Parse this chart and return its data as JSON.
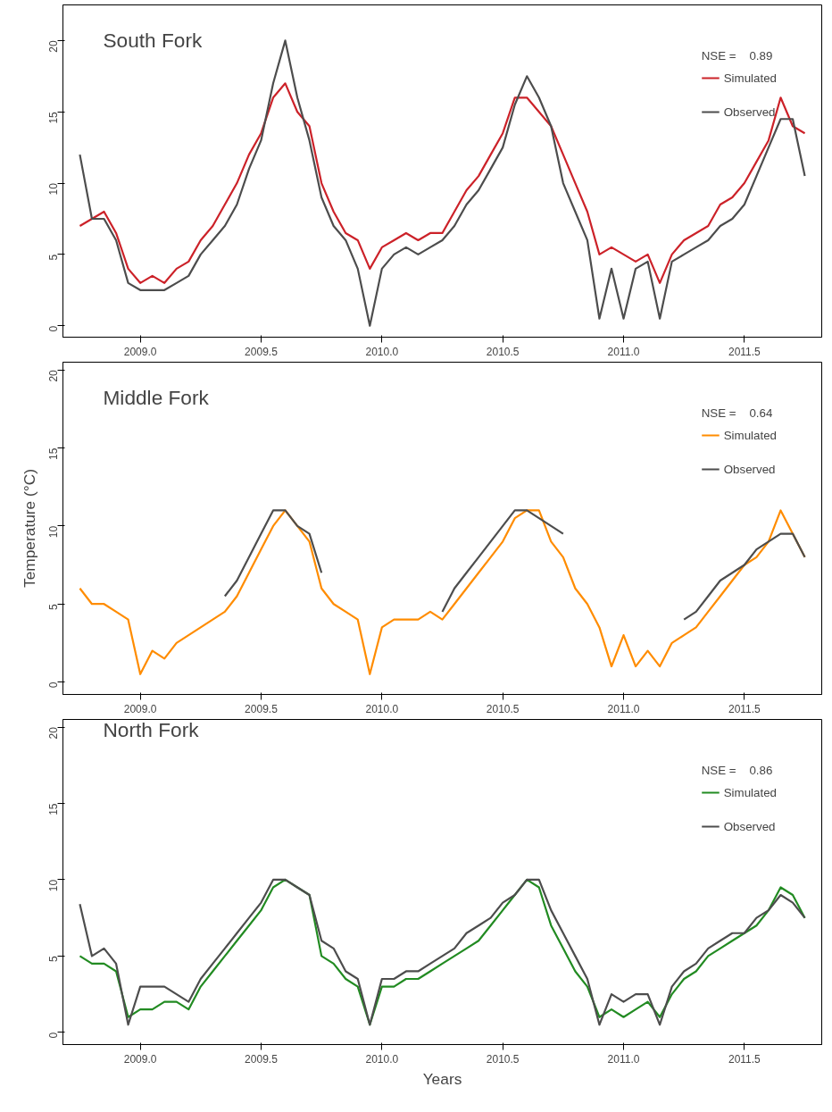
{
  "chart_data": [
    {
      "type": "line",
      "title": "South Fork",
      "legend_title": "NSE =    0.89",
      "legend": "top right",
      "x": [
        2008.75,
        2008.8,
        2008.85,
        2008.9,
        2008.95,
        2009,
        2009.05,
        2009.1,
        2009.15,
        2009.2,
        2009.25,
        2009.3,
        2009.35,
        2009.4,
        2009.45,
        2009.5,
        2009.55,
        2009.6,
        2009.65,
        2009.7,
        2009.75,
        2009.8,
        2009.85,
        2009.9,
        2009.95,
        2010,
        2010.05,
        2010.1,
        2010.15,
        2010.2,
        2010.25,
        2010.3,
        2010.35,
        2010.4,
        2010.45,
        2010.5,
        2010.55,
        2010.6,
        2010.65,
        2010.7,
        2010.75,
        2010.8,
        2010.85,
        2010.9,
        2010.95,
        2011,
        2011.05,
        2011.1,
        2011.15,
        2011.2,
        2011.25,
        2011.3,
        2011.35,
        2011.4,
        2011.45,
        2011.5,
        2011.55,
        2011.6,
        2011.65,
        2011.7,
        2011.75
      ],
      "series": [
        {
          "name": "Simulated",
          "color": "#cc2229",
          "values": [
            7,
            7.5,
            8,
            6.5,
            4,
            3,
            3.5,
            3,
            4,
            4.5,
            6,
            7,
            8.5,
            10,
            12,
            13.5,
            16,
            17,
            15,
            14,
            10,
            8,
            6.5,
            6,
            4,
            5.5,
            6,
            6.5,
            6,
            6.5,
            6.5,
            8,
            9.5,
            10.5,
            12,
            13.5,
            16,
            16,
            15,
            14,
            12,
            10,
            8,
            5,
            5.5,
            5,
            4.5,
            5,
            3,
            5,
            6,
            6.5,
            7,
            8.5,
            9,
            10,
            11.5,
            13,
            16,
            14,
            13.5
          ]
        },
        {
          "name": "Observed",
          "color": "#4d4d4d",
          "values": [
            12,
            7.5,
            7.5,
            6,
            3,
            2.5,
            2.5,
            2.5,
            3,
            3.5,
            5,
            6,
            7,
            8.5,
            11,
            13,
            17,
            20,
            16,
            13,
            9,
            7,
            6,
            4,
            0,
            4,
            5,
            5.5,
            5,
            5.5,
            6,
            7,
            8.5,
            9.5,
            11,
            12.5,
            15.5,
            17.5,
            16,
            14,
            10,
            8,
            6,
            0.5,
            4,
            0.5,
            4,
            4.5,
            0.5,
            4.5,
            5,
            5.5,
            6,
            7,
            7.5,
            8.5,
            10.5,
            12.5,
            14.5,
            14.5,
            10.5
          ]
        }
      ],
      "xlim": [
        2008.68,
        2011.82
      ],
      "ylim": [
        -0.8,
        22.5
      ],
      "yticks": [
        0,
        5,
        10,
        15,
        20
      ],
      "xticks": [
        {
          "value": 2009,
          "label": "2009.0"
        },
        {
          "value": 2009.5,
          "label": "2009.5"
        },
        {
          "value": 2010,
          "label": "2010.0"
        },
        {
          "value": 2010.5,
          "label": "2010.5"
        },
        {
          "value": 2011,
          "label": "2011.0"
        },
        {
          "value": 2011.5,
          "label": "2011.5"
        }
      ]
    },
    {
      "type": "line",
      "title": "Middle Fork",
      "ylabel": "Temperature (°C)",
      "legend_title": "NSE =    0.64",
      "legend": "top right",
      "x": [
        2008.75,
        2008.8,
        2008.85,
        2008.9,
        2008.95,
        2009,
        2009.05,
        2009.1,
        2009.15,
        2009.2,
        2009.25,
        2009.3,
        2009.35,
        2009.4,
        2009.45,
        2009.5,
        2009.55,
        2009.6,
        2009.65,
        2009.7,
        2009.75,
        2009.8,
        2009.85,
        2009.9,
        2009.95,
        2010,
        2010.05,
        2010.1,
        2010.15,
        2010.2,
        2010.25,
        2010.3,
        2010.35,
        2010.4,
        2010.45,
        2010.5,
        2010.55,
        2010.6,
        2010.65,
        2010.7,
        2010.75,
        2010.8,
        2010.85,
        2010.9,
        2010.95,
        2011,
        2011.05,
        2011.1,
        2011.15,
        2011.2,
        2011.25,
        2011.3,
        2011.35,
        2011.4,
        2011.45,
        2011.5,
        2011.55,
        2011.6,
        2011.65,
        2011.7,
        2011.75
      ],
      "series": [
        {
          "name": "Simulated",
          "color": "#ff8c00",
          "values": [
            6,
            5,
            5,
            4.5,
            4,
            0.5,
            2,
            1.5,
            2.5,
            3,
            3.5,
            4,
            4.5,
            5.5,
            7,
            8.5,
            10,
            11,
            10,
            9,
            6,
            5,
            4.5,
            4,
            0.5,
            3.5,
            4,
            4,
            4,
            4.5,
            4,
            5,
            6,
            7,
            8,
            9,
            10.5,
            11,
            11,
            9,
            8,
            6,
            5,
            3.5,
            1,
            3,
            1,
            2,
            1,
            2.5,
            3,
            3.5,
            4.5,
            5.5,
            6.5,
            7.5,
            8,
            9,
            11,
            9.5,
            8
          ]
        },
        {
          "name": "Observed",
          "color": "#4d4d4d",
          "values": [
            null,
            null,
            null,
            null,
            null,
            null,
            null,
            null,
            null,
            null,
            null,
            null,
            5.5,
            6.5,
            8,
            9.5,
            11,
            11,
            10,
            9.5,
            7,
            null,
            null,
            null,
            null,
            null,
            null,
            null,
            null,
            null,
            4.5,
            6,
            7,
            8,
            9,
            10,
            11,
            11,
            10.5,
            10,
            9.5,
            null,
            null,
            null,
            null,
            null,
            null,
            null,
            null,
            null,
            4,
            4.5,
            5.5,
            6.5,
            7,
            7.5,
            8.5,
            9,
            9.5,
            9.5,
            8
          ]
        }
      ],
      "xlim": [
        2008.68,
        2011.82
      ],
      "ylim": [
        -0.8,
        20.5
      ],
      "yticks": [
        0,
        5,
        10,
        15,
        20
      ],
      "xticks": [
        {
          "value": 2009,
          "label": "2009.0"
        },
        {
          "value": 2009.5,
          "label": "2009.5"
        },
        {
          "value": 2010,
          "label": "2010.0"
        },
        {
          "value": 2010.5,
          "label": "2010.5"
        },
        {
          "value": 2011,
          "label": "2011.0"
        },
        {
          "value": 2011.5,
          "label": "2011.5"
        }
      ]
    },
    {
      "type": "line",
      "title": "North Fork",
      "xlabel": "Years",
      "legend_title": "NSE =    0.86",
      "legend": "top right",
      "x": [
        2008.75,
        2008.8,
        2008.85,
        2008.9,
        2008.95,
        2009,
        2009.05,
        2009.1,
        2009.15,
        2009.2,
        2009.25,
        2009.3,
        2009.35,
        2009.4,
        2009.45,
        2009.5,
        2009.55,
        2009.6,
        2009.65,
        2009.7,
        2009.75,
        2009.8,
        2009.85,
        2009.9,
        2009.95,
        2010,
        2010.05,
        2010.1,
        2010.15,
        2010.2,
        2010.25,
        2010.3,
        2010.35,
        2010.4,
        2010.45,
        2010.5,
        2010.55,
        2010.6,
        2010.65,
        2010.7,
        2010.75,
        2010.8,
        2010.85,
        2010.9,
        2010.95,
        2011,
        2011.05,
        2011.1,
        2011.15,
        2011.2,
        2011.25,
        2011.3,
        2011.35,
        2011.4,
        2011.45,
        2011.5,
        2011.55,
        2011.6,
        2011.65,
        2011.7,
        2011.75
      ],
      "series": [
        {
          "name": "Simulated",
          "color": "#228b22",
          "values": [
            5,
            4.5,
            4.5,
            4,
            1,
            1.5,
            1.5,
            2,
            2,
            1.5,
            3,
            4,
            5,
            6,
            7,
            8,
            9.5,
            10,
            9.5,
            9,
            5,
            4.5,
            3.5,
            3,
            0.5,
            3,
            3,
            3.5,
            3.5,
            4,
            4.5,
            5,
            5.5,
            6,
            7,
            8,
            9,
            10,
            9.5,
            7,
            5.5,
            4,
            3,
            1,
            1.5,
            1,
            1.5,
            2,
            1,
            2.5,
            3.5,
            4,
            5,
            5.5,
            6,
            6.5,
            7,
            8,
            9.5,
            9,
            7.5
          ]
        },
        {
          "name": "Observed",
          "color": "#4d4d4d",
          "values": [
            8.4,
            5,
            5.5,
            4.5,
            0.5,
            3,
            3,
            3,
            2.5,
            2,
            3.5,
            4.5,
            5.5,
            6.5,
            7.5,
            8.5,
            10,
            10,
            9.5,
            9,
            6,
            5.5,
            4,
            3.5,
            0.5,
            3.5,
            3.5,
            4,
            4,
            4.5,
            5,
            5.5,
            6.5,
            7,
            7.5,
            8.5,
            9,
            10,
            10,
            8,
            6.5,
            5,
            3.5,
            0.5,
            2.5,
            2,
            2.5,
            2.5,
            0.5,
            3,
            4,
            4.5,
            5.5,
            6,
            6.5,
            6.5,
            7.5,
            8,
            9,
            8.5,
            7.5
          ]
        }
      ],
      "xlim": [
        2008.68,
        2011.82
      ],
      "ylim": [
        -0.8,
        20.5
      ],
      "yticks": [
        0,
        5,
        10,
        15,
        20
      ],
      "xticks": [
        {
          "value": 2009,
          "label": "2009.0"
        },
        {
          "value": 2009.5,
          "label": "2009.5"
        },
        {
          "value": 2010,
          "label": "2010.0"
        },
        {
          "value": 2010.5,
          "label": "2010.5"
        },
        {
          "value": 2011,
          "label": "2011.0"
        },
        {
          "value": 2011.5,
          "label": "2011.5"
        }
      ]
    }
  ]
}
